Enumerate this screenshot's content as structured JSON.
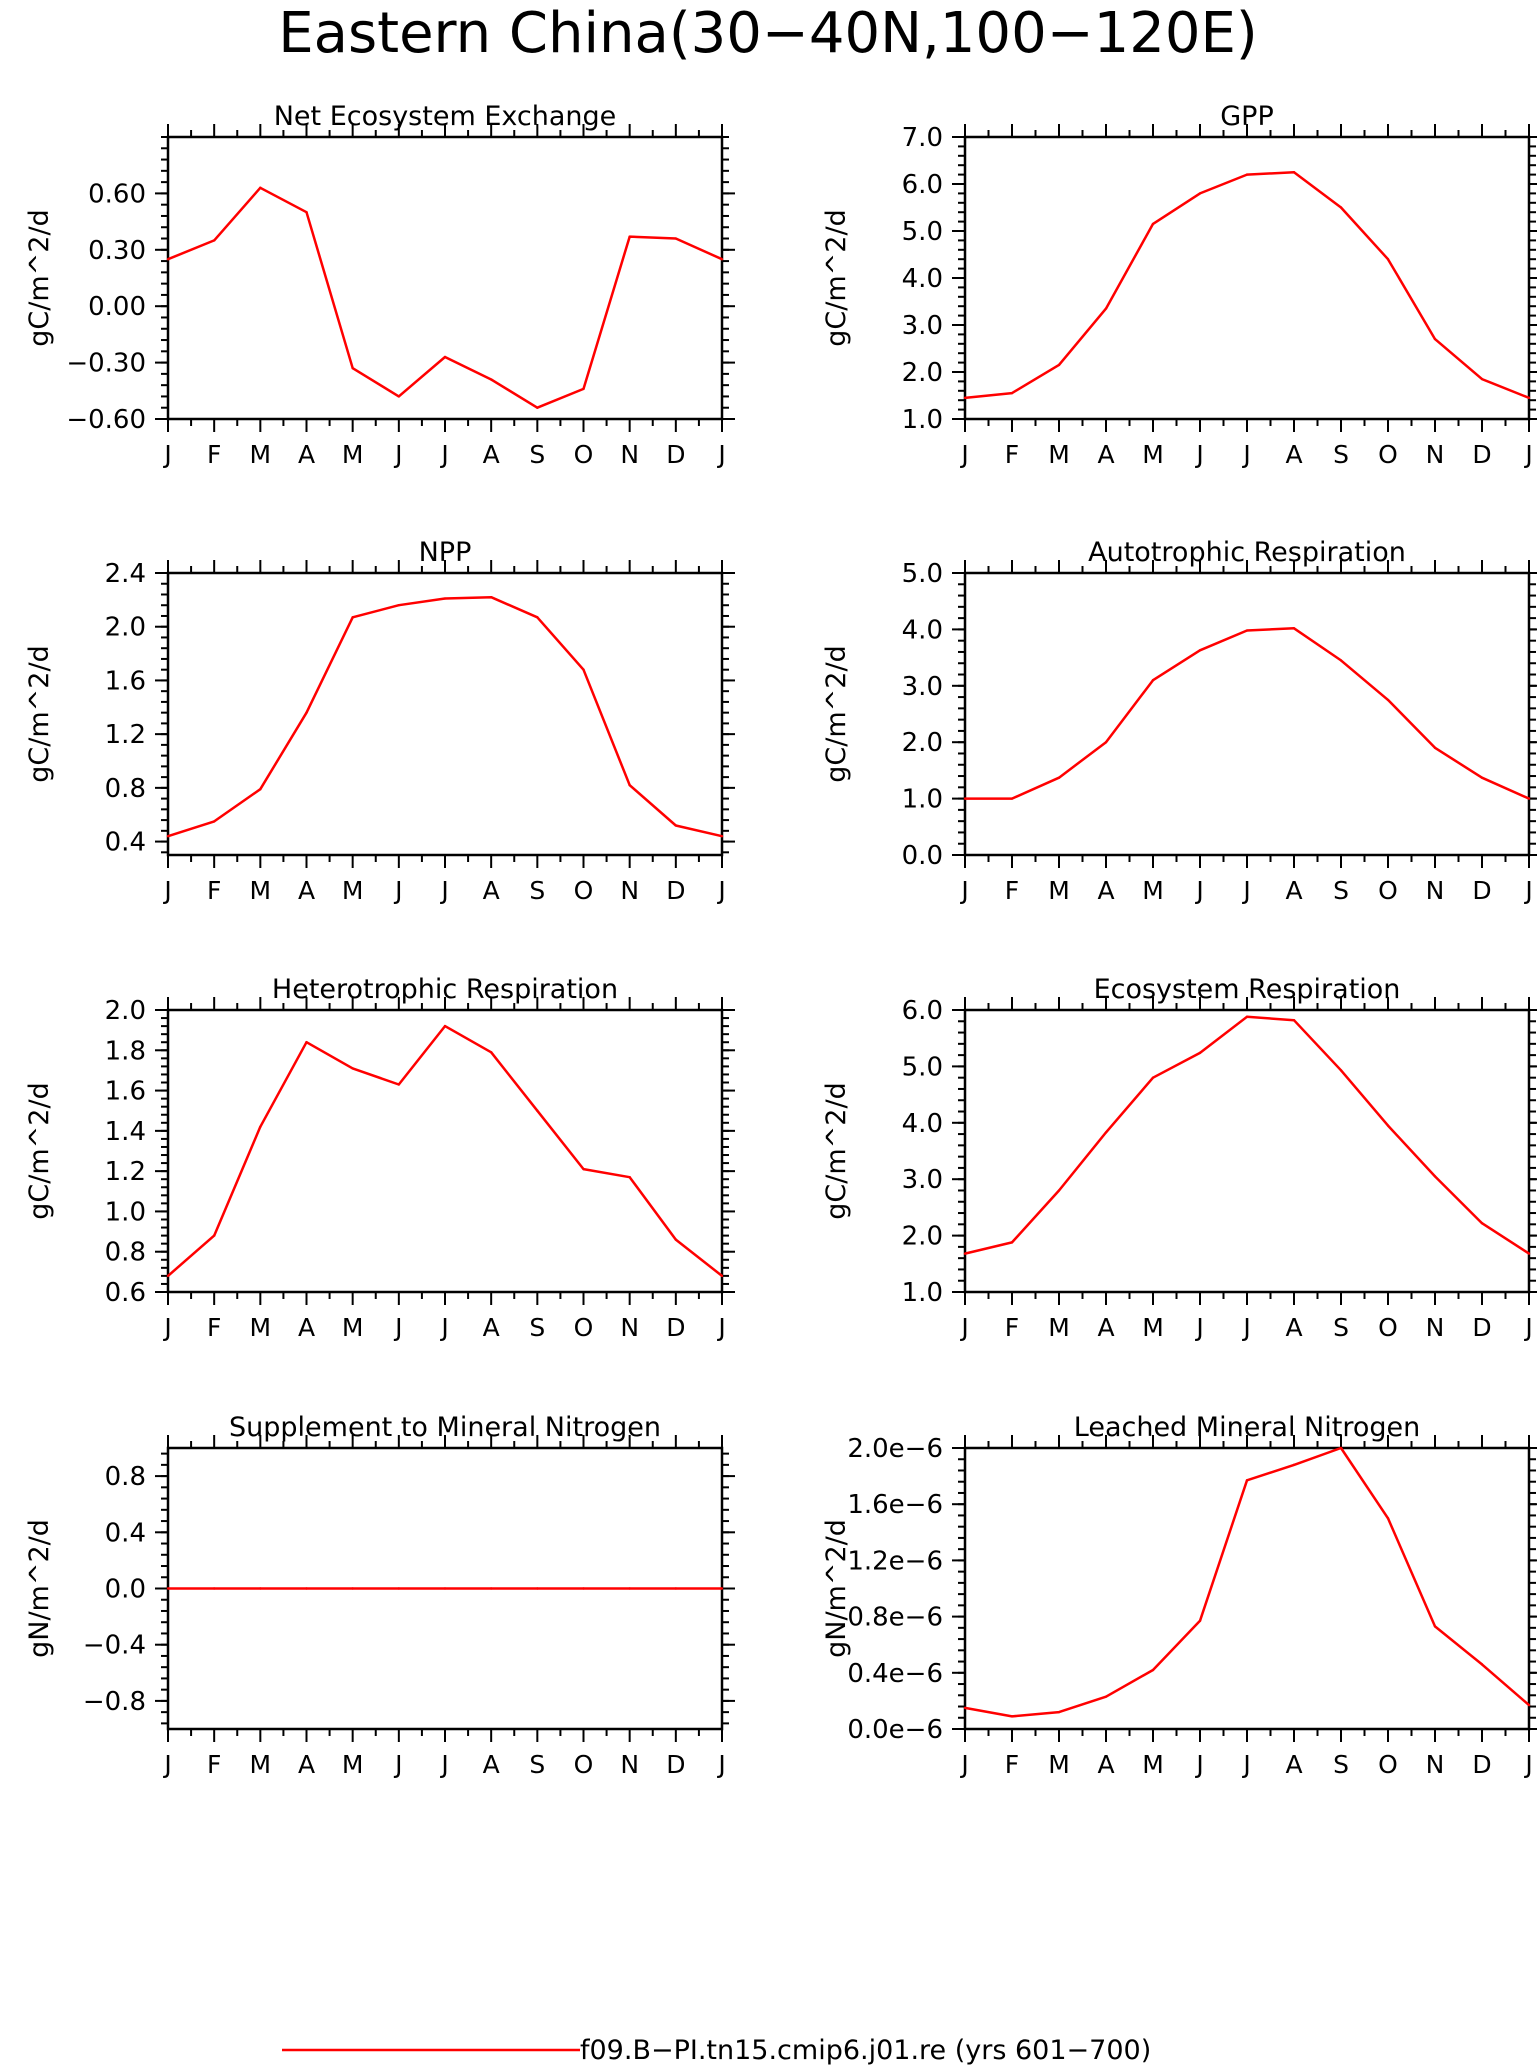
{
  "figure": {
    "title": "Eastern China(30−40N,100−120E)",
    "legend_label": "f09.B−PI.tn15.cmip6.j01.re (yrs 601−700)",
    "line_color": "#ff0000"
  },
  "chart_data": [
    {
      "type": "line",
      "title": "Net Ecosystem Exchange",
      "ylabel": "gC/m^2/d",
      "categories": [
        "J",
        "F",
        "M",
        "A",
        "M",
        "J",
        "J",
        "A",
        "S",
        "O",
        "N",
        "D",
        "J"
      ],
      "ylim": [
        -0.6,
        0.9
      ],
      "yticks": [
        "0.60",
        "0.30",
        "0.00",
        "−0.30",
        "−0.60"
      ],
      "ytick_values": [
        0.6,
        0.3,
        0.0,
        -0.3,
        -0.6
      ],
      "values": [
        0.25,
        0.35,
        0.63,
        0.5,
        -0.33,
        -0.48,
        -0.27,
        -0.39,
        -0.54,
        -0.44,
        0.37,
        0.36,
        0.25
      ]
    },
    {
      "type": "line",
      "title": "GPP",
      "ylabel": "gC/m^2/d",
      "categories": [
        "J",
        "F",
        "M",
        "A",
        "M",
        "J",
        "J",
        "A",
        "S",
        "O",
        "N",
        "D",
        "J"
      ],
      "ylim": [
        1.0,
        7.0
      ],
      "yticks": [
        "7.0",
        "6.0",
        "5.0",
        "4.0",
        "3.0",
        "2.0",
        "1.0"
      ],
      "ytick_values": [
        7,
        6,
        5,
        4,
        3,
        2,
        1
      ],
      "values": [
        1.45,
        1.55,
        2.15,
        3.35,
        5.15,
        5.8,
        6.2,
        6.25,
        5.5,
        4.4,
        2.7,
        1.85,
        1.45
      ]
    },
    {
      "type": "line",
      "title": "NPP",
      "ylabel": "gC/m^2/d",
      "categories": [
        "J",
        "F",
        "M",
        "A",
        "M",
        "J",
        "J",
        "A",
        "S",
        "O",
        "N",
        "D",
        "J"
      ],
      "ylim": [
        0.3,
        2.4
      ],
      "yticks": [
        "2.4",
        "2.0",
        "1.6",
        "1.2",
        "0.8",
        "0.4"
      ],
      "ytick_values": [
        2.4,
        2.0,
        1.6,
        1.2,
        0.8,
        0.4
      ],
      "values": [
        0.44,
        0.55,
        0.79,
        1.36,
        2.07,
        2.16,
        2.21,
        2.22,
        2.07,
        1.68,
        0.82,
        0.52,
        0.44
      ]
    },
    {
      "type": "line",
      "title": "Autotrophic Respiration",
      "ylabel": "gC/m^2/d",
      "categories": [
        "J",
        "F",
        "M",
        "A",
        "M",
        "J",
        "J",
        "A",
        "S",
        "O",
        "N",
        "D",
        "J"
      ],
      "ylim": [
        0.0,
        5.0
      ],
      "yticks": [
        "5.0",
        "4.0",
        "3.0",
        "2.0",
        "1.0",
        "0.0"
      ],
      "ytick_values": [
        5,
        4,
        3,
        2,
        1,
        0
      ],
      "values": [
        1.0,
        1.0,
        1.37,
        2.0,
        3.1,
        3.63,
        3.98,
        4.02,
        3.45,
        2.75,
        1.9,
        1.37,
        1.0
      ]
    },
    {
      "type": "line",
      "title": "Heterotrophic Respiration",
      "ylabel": "gC/m^2/d",
      "categories": [
        "J",
        "F",
        "M",
        "A",
        "M",
        "J",
        "J",
        "A",
        "S",
        "O",
        "N",
        "D",
        "J"
      ],
      "ylim": [
        0.6,
        2.0
      ],
      "yticks": [
        "2.0",
        "1.8",
        "1.6",
        "1.4",
        "1.2",
        "1.0",
        "0.8",
        "0.6"
      ],
      "ytick_values": [
        2.0,
        1.8,
        1.6,
        1.4,
        1.2,
        1.0,
        0.8,
        0.6
      ],
      "values": [
        0.68,
        0.88,
        1.42,
        1.84,
        1.71,
        1.63,
        1.92,
        1.79,
        1.5,
        1.21,
        1.17,
        0.86,
        0.68
      ]
    },
    {
      "type": "line",
      "title": "Ecosystem Respiration",
      "ylabel": "gC/m^2/d",
      "categories": [
        "J",
        "F",
        "M",
        "A",
        "M",
        "J",
        "J",
        "A",
        "S",
        "O",
        "N",
        "D",
        "J"
      ],
      "ylim": [
        1.0,
        6.0
      ],
      "yticks": [
        "6.0",
        "5.0",
        "4.0",
        "3.0",
        "2.0",
        "1.0"
      ],
      "ytick_values": [
        6,
        5,
        4,
        3,
        2,
        1
      ],
      "values": [
        1.68,
        1.88,
        2.8,
        3.83,
        4.8,
        5.24,
        5.88,
        5.82,
        4.93,
        3.95,
        3.05,
        2.22,
        1.68
      ]
    },
    {
      "type": "line",
      "title": "Supplement to Mineral Nitrogen",
      "ylabel": "gN/m^2/d",
      "categories": [
        "J",
        "F",
        "M",
        "A",
        "M",
        "J",
        "J",
        "A",
        "S",
        "O",
        "N",
        "D",
        "J"
      ],
      "ylim": [
        -1.0,
        1.0
      ],
      "yticks": [
        "0.8",
        "0.4",
        "0.0",
        "−0.4",
        "−0.8"
      ],
      "ytick_values": [
        0.8,
        0.4,
        0.0,
        -0.4,
        -0.8
      ],
      "values": [
        0,
        0,
        0,
        0,
        0,
        0,
        0,
        0,
        0,
        0,
        0,
        0,
        0
      ]
    },
    {
      "type": "line",
      "title": "Leached Mineral Nitrogen",
      "ylabel": "gN/m^2/d",
      "categories": [
        "J",
        "F",
        "M",
        "A",
        "M",
        "J",
        "J",
        "A",
        "S",
        "O",
        "N",
        "D",
        "J"
      ],
      "ylim": [
        0.0,
        2e-06
      ],
      "yticks": [
        "2.0e−6",
        "1.6e−6",
        "1.2e−6",
        "0.8e−6",
        "0.4e−6",
        "0.0e−6"
      ],
      "ytick_values": [
        2e-06,
        1.6e-06,
        1.2e-06,
        8e-07,
        4e-07,
        0.0
      ],
      "values": [
        1.5e-07,
        9e-08,
        1.2e-07,
        2.3e-07,
        4.2e-07,
        7.7e-07,
        1.77e-06,
        1.88e-06,
        2e-06,
        1.5e-06,
        7.3e-07,
        4.6e-07,
        1.7e-07
      ]
    }
  ]
}
